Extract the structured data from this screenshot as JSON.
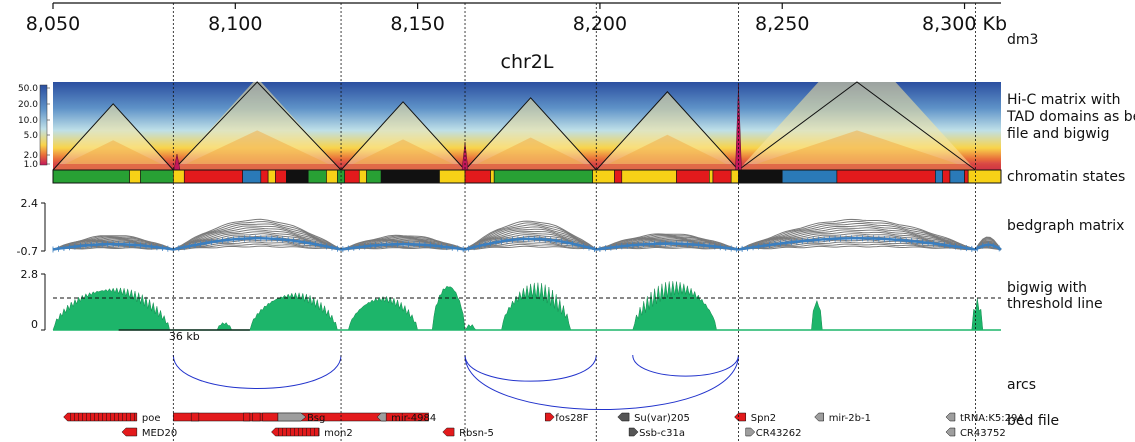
{
  "chart_data": [
    {
      "type": "genome_tracks",
      "genome": "dm3",
      "chromosome": "chr2L",
      "x_axis": {
        "unit": "Kb",
        "range_kb": [
          8050,
          8310
        ],
        "ticks": [
          "8,050",
          "8,100",
          "8,150",
          "8,200",
          "8,250",
          "8,300"
        ],
        "last_tick_suffix": "Kb"
      },
      "vlines_kb": [
        8083,
        8129,
        8163,
        8199,
        8238,
        8303
      ],
      "colors": {
        "hic_high": "#c2185b",
        "hic_mid": "#f9d44a",
        "hic_low": "#2b5fa8",
        "domain_line": "#111111",
        "bigwig_fill": "#1db56a",
        "arc_color": "#2233cc",
        "gene_red": "#e31a1c",
        "gene_gray": "#9e9e9e",
        "bedgraph_mean": "#3a7fc1",
        "bedgraph_lines": "#7a7a7a"
      }
    },
    {
      "type": "heatmap",
      "name": "hic",
      "label": "Hi-C matrix with TAD domains as bed file and bigwig",
      "colorbar_ticks": [
        "50.0",
        "20.0",
        "10.0",
        "5.0",
        "2.0",
        "1.0"
      ],
      "tad_domains_kb": [
        [
          8050,
          8083
        ],
        [
          8083,
          8129
        ],
        [
          8129,
          8163
        ],
        [
          8163,
          8199
        ],
        [
          8199,
          8238
        ],
        [
          8238,
          8303
        ]
      ],
      "bigwig_peaks_kb": [
        8084,
        8163,
        8238
      ]
    },
    {
      "type": "segments",
      "name": "chromatin",
      "label": "chromatin states",
      "segments": [
        {
          "start": 8050,
          "end": 8071,
          "color": "#28a034"
        },
        {
          "start": 8071,
          "end": 8074,
          "color": "#f7d117"
        },
        {
          "start": 8074,
          "end": 8083,
          "color": "#28a034"
        },
        {
          "start": 8083,
          "end": 8086,
          "color": "#f7d117"
        },
        {
          "start": 8086,
          "end": 8102,
          "color": "#e31a1c"
        },
        {
          "start": 8102,
          "end": 8107,
          "color": "#2a7ab8"
        },
        {
          "start": 8107,
          "end": 8109,
          "color": "#e31a1c"
        },
        {
          "start": 8109,
          "end": 8111,
          "color": "#f7d117"
        },
        {
          "start": 8111,
          "end": 8114,
          "color": "#e31a1c"
        },
        {
          "start": 8114,
          "end": 8120,
          "color": "#111111"
        },
        {
          "start": 8120,
          "end": 8125,
          "color": "#28a034"
        },
        {
          "start": 8125,
          "end": 8128,
          "color": "#f7d117"
        },
        {
          "start": 8128,
          "end": 8130,
          "color": "#28a034"
        },
        {
          "start": 8130,
          "end": 8134,
          "color": "#e31a1c"
        },
        {
          "start": 8134,
          "end": 8136,
          "color": "#f7d117"
        },
        {
          "start": 8136,
          "end": 8140,
          "color": "#28a034"
        },
        {
          "start": 8140,
          "end": 8156,
          "color": "#111111"
        },
        {
          "start": 8156,
          "end": 8163,
          "color": "#f7d117"
        },
        {
          "start": 8163,
          "end": 8170,
          "color": "#e31a1c"
        },
        {
          "start": 8170,
          "end": 8171,
          "color": "#f7d117"
        },
        {
          "start": 8171,
          "end": 8198,
          "color": "#28a034"
        },
        {
          "start": 8198,
          "end": 8204,
          "color": "#f7d117"
        },
        {
          "start": 8204,
          "end": 8206,
          "color": "#e31a1c"
        },
        {
          "start": 8206,
          "end": 8221,
          "color": "#f7d117"
        },
        {
          "start": 8221,
          "end": 8230,
          "color": "#e31a1c"
        },
        {
          "start": 8230,
          "end": 8231,
          "color": "#f7d117"
        },
        {
          "start": 8231,
          "end": 8236,
          "color": "#e31a1c"
        },
        {
          "start": 8236,
          "end": 8238,
          "color": "#f7d117"
        },
        {
          "start": 8238,
          "end": 8250,
          "color": "#111111"
        },
        {
          "start": 8250,
          "end": 8265,
          "color": "#2a7ab8"
        },
        {
          "start": 8265,
          "end": 8292,
          "color": "#e31a1c"
        },
        {
          "start": 8292,
          "end": 8294,
          "color": "#2a7ab8"
        },
        {
          "start": 8294,
          "end": 8296,
          "color": "#e31a1c"
        },
        {
          "start": 8296,
          "end": 8300,
          "color": "#2a7ab8"
        },
        {
          "start": 8300,
          "end": 8301,
          "color": "#e31a1c"
        },
        {
          "start": 8301,
          "end": 8310,
          "color": "#f7d117"
        }
      ]
    },
    {
      "type": "line",
      "name": "bedgraph",
      "label": "bedgraph matrix",
      "y_ticks": [
        "2.4",
        "-0.7"
      ],
      "ylim": [
        -0.7,
        2.4
      ],
      "bumps_kb": [
        [
          8050,
          8083,
          0.9
        ],
        [
          8083,
          8129,
          1.9
        ],
        [
          8129,
          8163,
          0.9
        ],
        [
          8163,
          8199,
          1.8
        ],
        [
          8199,
          8238,
          1.0
        ],
        [
          8238,
          8303,
          1.9
        ],
        [
          8303,
          8310,
          0.8
        ]
      ]
    },
    {
      "type": "area",
      "name": "bigwig",
      "label": "bigwig with threshold line",
      "y_ticks": [
        "2.8",
        "0"
      ],
      "ylim": [
        0,
        2.8
      ],
      "threshold": 1.6,
      "scale_bar": "36 kb",
      "scale_bar_kb": [
        8068,
        8104
      ],
      "regions_kb": [
        [
          8050,
          8082,
          2.3
        ],
        [
          8095,
          8099,
          0.4
        ],
        [
          8104,
          8128,
          2.0
        ],
        [
          8131,
          8150,
          1.8
        ],
        [
          8154,
          8163,
          2.5
        ],
        [
          8163,
          8166,
          0.3
        ],
        [
          8173,
          8192,
          2.4
        ],
        [
          8209,
          8232,
          2.5
        ],
        [
          8258,
          8261,
          1.6
        ],
        [
          8302,
          8305,
          1.6
        ]
      ]
    },
    {
      "type": "arcs",
      "name": "arcs",
      "label": "arcs",
      "arcs_kb": [
        [
          8083,
          8129
        ],
        [
          8163,
          8199
        ],
        [
          8209,
          8238
        ],
        [
          8163,
          8238
        ]
      ]
    },
    {
      "type": "genes",
      "name": "bed",
      "label": "bed file",
      "genes": [
        {
          "name": "poe",
          "start": 8054,
          "end": 8073,
          "strand": "-",
          "row": 0,
          "color": "#e31a1c"
        },
        {
          "name": "Bsg",
          "start": 8083,
          "end": 8118,
          "strand": "+",
          "row": 0,
          "color": "#9e9e9e"
        },
        {
          "name": "mir-4984",
          "start": 8140,
          "end": 8141,
          "strand": "-",
          "row": 0,
          "color": "#9e9e9e"
        },
        {
          "name": "fos28F",
          "start": 8185,
          "end": 8186,
          "strand": "+",
          "row": 0,
          "color": "#e31a1c"
        },
        {
          "name": "Su(var)205",
          "start": 8206,
          "end": 8208,
          "strand": "-",
          "row": 0,
          "color": "#555555"
        },
        {
          "name": "Spn2",
          "start": 8238,
          "end": 8240,
          "strand": "-",
          "row": 0,
          "color": "#e31a1c"
        },
        {
          "name": "mir-2b-1",
          "start": 8260,
          "end": 8261,
          "strand": "-",
          "row": 0,
          "color": "#9e9e9e"
        },
        {
          "name": "tRNA:K5:29A",
          "start": 8296,
          "end": 8297,
          "strand": "-",
          "row": 0,
          "color": "#9e9e9e"
        },
        {
          "name": "MED20",
          "start": 8070,
          "end": 8073,
          "strand": "-",
          "row": 1,
          "color": "#e31a1c"
        },
        {
          "name": "mon2",
          "start": 8111,
          "end": 8123,
          "strand": "-",
          "row": 1,
          "color": "#e31a1c"
        },
        {
          "name": "Rbsn-5",
          "start": 8158,
          "end": 8160,
          "strand": "-",
          "row": 1,
          "color": "#e31a1c"
        },
        {
          "name": "Ssb-c31a",
          "start": 8208,
          "end": 8209,
          "strand": "+",
          "row": 1,
          "color": "#555555"
        },
        {
          "name": "CR43262",
          "start": 8240,
          "end": 8241,
          "strand": "+",
          "row": 1,
          "color": "#9e9e9e"
        },
        {
          "name": "CR43752",
          "start": 8296,
          "end": 8297,
          "strand": "-",
          "row": 1,
          "color": "#9e9e9e"
        }
      ]
    }
  ]
}
